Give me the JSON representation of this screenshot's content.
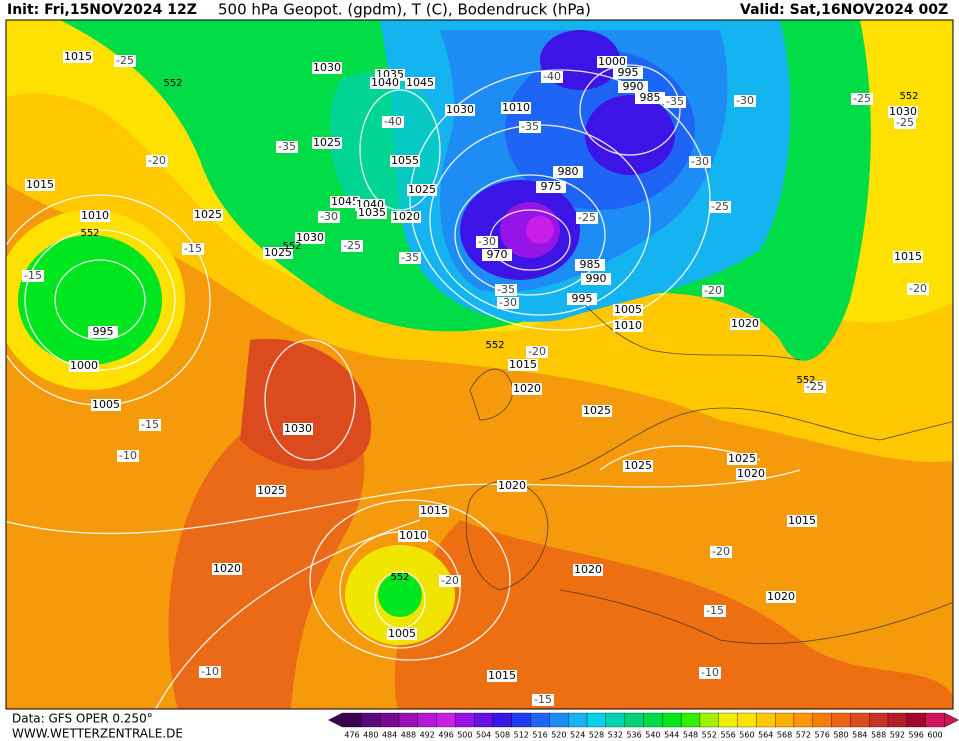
{
  "header": {
    "init": "Init: Fri,15NOV2024 12Z",
    "title": "500 hPa Geopot. (gpdm), T (C), Bodendruck (hPa)",
    "valid": "Valid: Sat,16NOV2024 00Z"
  },
  "footer": {
    "data": "Data: GFS OPER 0.250°",
    "site": "WWW.WETTERZENTRALE.DE"
  },
  "colorbar": {
    "ticks": [
      476,
      480,
      484,
      488,
      492,
      496,
      500,
      504,
      508,
      512,
      516,
      520,
      524,
      528,
      532,
      536,
      540,
      544,
      548,
      552,
      556,
      560,
      564,
      568,
      572,
      576,
      580,
      584,
      588,
      592,
      596,
      600
    ],
    "colors": [
      "#3c0050",
      "#5a0a78",
      "#7a0896",
      "#9a10b4",
      "#b418d2",
      "#c81ee6",
      "#9614e6",
      "#6410e6",
      "#3c14e6",
      "#1e3cf0",
      "#1e64f5",
      "#1e8cf5",
      "#14b4f0",
      "#0ad2e6",
      "#00d2b4",
      "#00d278",
      "#00dc46",
      "#00e61e",
      "#32f000",
      "#a0f000",
      "#f0f000",
      "#ffe100",
      "#ffc800",
      "#ffaf00",
      "#ff9600",
      "#f57d00",
      "#eb6414",
      "#dc4b1e",
      "#c83228",
      "#b41e28",
      "#a00a28",
      "#d2145a"
    ]
  },
  "map_labels": {
    "pressure": [
      1015,
      1030,
      1035,
      1040,
      1045,
      1030,
      1025,
      1055,
      1025,
      1045,
      1040,
      1035,
      1020,
      1030,
      1025,
      1015,
      1010,
      1025,
      995,
      1000,
      1005,
      1010,
      1000,
      995,
      990,
      985,
      980,
      975,
      970,
      985,
      990,
      995,
      1005,
      1010,
      1015,
      1020,
      1025,
      1020,
      1015,
      1030,
      1030,
      1025,
      1025,
      1025,
      1020,
      1015,
      1020,
      1015,
      1010,
      1005,
      1020,
      1020,
      1020,
      1015
    ],
    "temperature": [
      -25,
      -20,
      -15,
      -15,
      -15,
      -10,
      -10,
      -35,
      -30,
      -25,
      -35,
      -40,
      -40,
      -35,
      -35,
      -30,
      -30,
      -25,
      -25,
      -30,
      -35,
      -30,
      -25,
      -25,
      -20,
      -20,
      -20,
      -25,
      -20,
      -20,
      -15,
      -10,
      -15
    ],
    "geopotential": [
      552,
      552,
      552,
      552,
      552,
      552,
      552
    ]
  }
}
